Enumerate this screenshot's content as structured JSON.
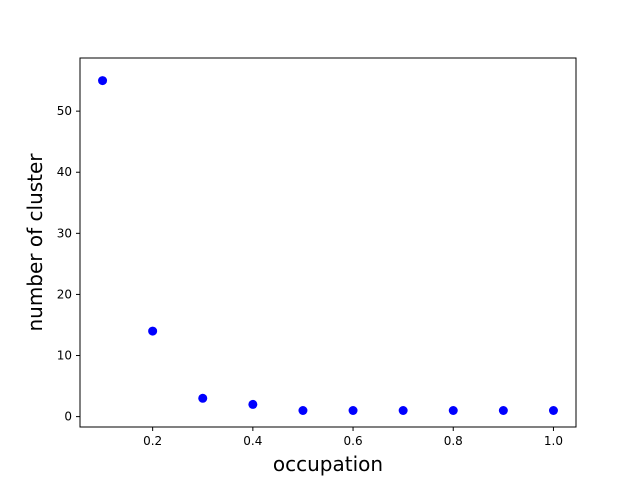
{
  "chart_data": {
    "type": "scatter",
    "title": "",
    "xlabel": "occupation",
    "ylabel": "number of cluster",
    "xlim": [
      0.055,
      1.045
    ],
    "ylim": [
      -1.7,
      58.7
    ],
    "x_ticks": [
      0.2,
      0.4,
      0.6,
      0.8,
      1.0
    ],
    "x_tick_labels": [
      "0.2",
      "0.4",
      "0.6",
      "0.8",
      "1.0"
    ],
    "y_ticks": [
      0,
      10,
      20,
      30,
      40,
      50
    ],
    "y_tick_labels": [
      "0",
      "10",
      "20",
      "30",
      "40",
      "50"
    ],
    "grid": false,
    "marker_color": "#0000ff",
    "series": [
      {
        "x": [
          0.1,
          0.2,
          0.3,
          0.4,
          0.5,
          0.6,
          0.7,
          0.8,
          0.9,
          1.0
        ],
        "y": [
          55,
          14,
          3,
          2,
          1,
          1,
          1,
          1,
          1,
          1
        ]
      }
    ]
  }
}
